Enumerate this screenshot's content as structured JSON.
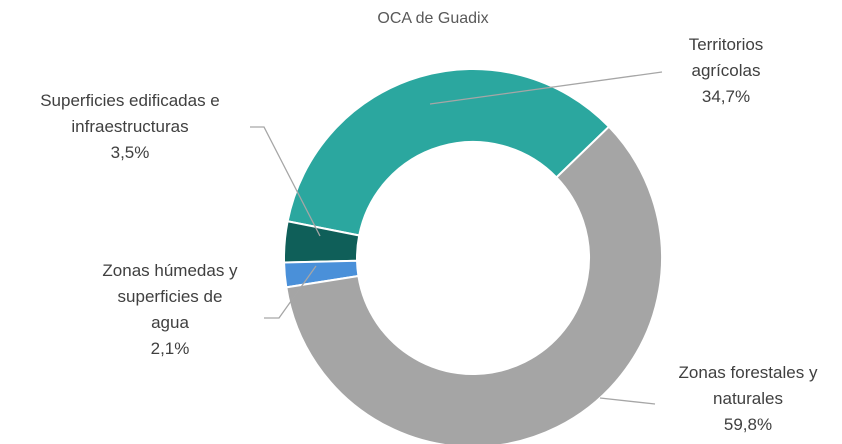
{
  "chart_data": {
    "type": "donut",
    "title": "OCA de Guadix",
    "categories": [
      "Zonas forestales y naturales",
      "Zonas húmedas y superficies de agua",
      "Superficies edificadas e infraestructuras",
      "Territorios agrícolas"
    ],
    "values": [
      59.8,
      2.1,
      3.5,
      34.7
    ],
    "value_labels": [
      "59,8%",
      "2,1%",
      "3,5%",
      "34,7%"
    ],
    "colors": [
      "#a5a5a5",
      "#4a90d9",
      "#0f5f59",
      "#2ba79f"
    ],
    "start_angle": 46
  }
}
